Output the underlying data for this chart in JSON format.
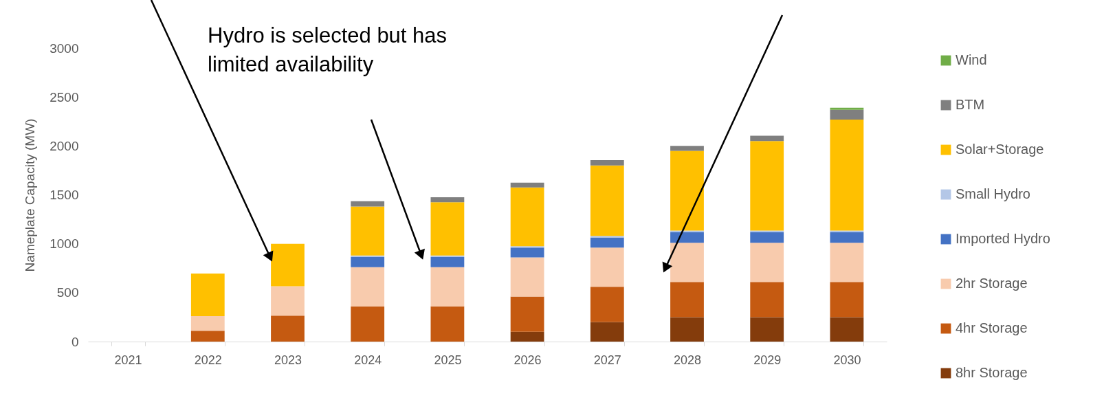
{
  "chart_data": {
    "type": "bar",
    "stacked": true,
    "ylabel": "Nameplate Capacity (MW)",
    "categories": [
      "2021",
      "2022",
      "2023",
      "2024",
      "2025",
      "2026",
      "2027",
      "2028",
      "2029",
      "2030"
    ],
    "series": [
      {
        "name": "8hr Storage",
        "color": "#843c0c",
        "values": [
          0,
          0,
          0,
          0,
          0,
          100,
          200,
          250,
          250,
          250
        ]
      },
      {
        "name": "4hr Storage",
        "color": "#c55a11",
        "values": [
          0,
          110,
          265,
          360,
          360,
          360,
          360,
          360,
          360,
          360
        ]
      },
      {
        "name": "2hr Storage",
        "color": "#f8cbad",
        "values": [
          0,
          150,
          300,
          400,
          400,
          400,
          400,
          400,
          400,
          400
        ]
      },
      {
        "name": "Imported Hydro",
        "color": "#4472c4",
        "values": [
          0,
          0,
          0,
          105,
          105,
          100,
          105,
          110,
          110,
          110
        ]
      },
      {
        "name": "Small Hydro",
        "color": "#b4c7e7",
        "values": [
          0,
          0,
          0,
          15,
          15,
          15,
          15,
          15,
          15,
          15
        ]
      },
      {
        "name": "Solar+Storage",
        "color": "#ffc000",
        "values": [
          0,
          435,
          435,
          500,
          545,
          600,
          720,
          815,
          915,
          1135
        ]
      },
      {
        "name": "BTM",
        "color": "#7f7f7f",
        "values": [
          0,
          0,
          0,
          55,
          50,
          50,
          55,
          50,
          55,
          100
        ]
      },
      {
        "name": "Wind",
        "color": "#70ad47",
        "values": [
          0,
          0,
          0,
          0,
          0,
          0,
          0,
          0,
          0,
          20
        ]
      }
    ],
    "ylim": [
      0,
      3000
    ],
    "yticks": [
      0,
      500,
      1000,
      1500,
      2000,
      2500,
      3000
    ],
    "grid": false,
    "legend": "right",
    "annotations": [
      "Hydro is selected but has limited availability"
    ]
  }
}
